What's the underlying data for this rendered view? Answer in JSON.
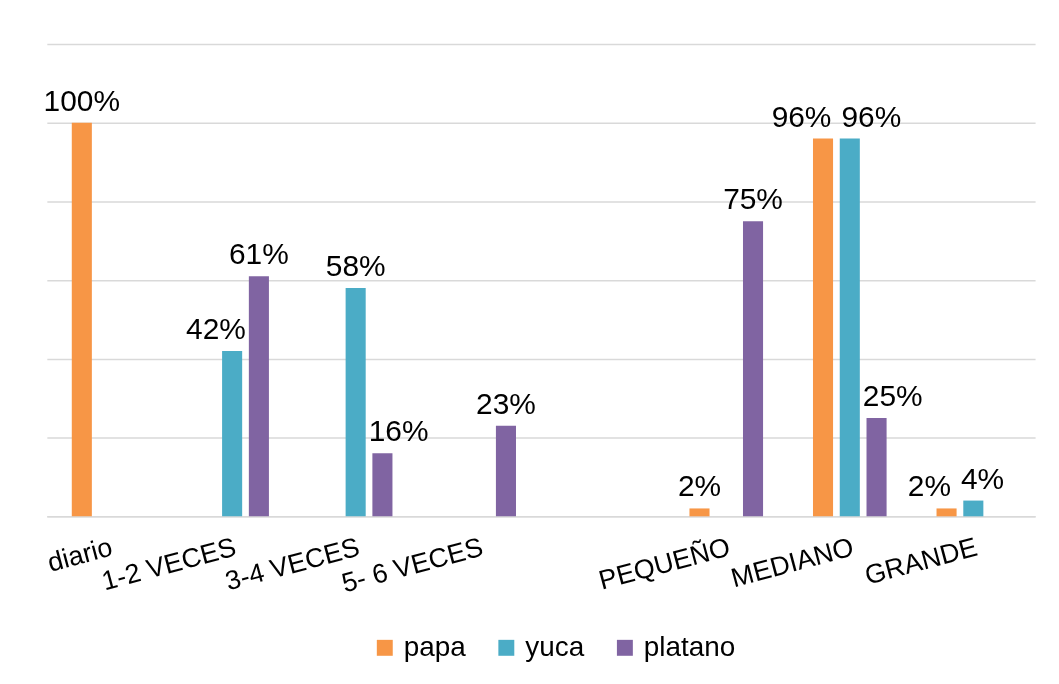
{
  "chart_data": {
    "type": "bar",
    "categories": [
      "diario",
      "1-2 VECES",
      "3-4 VECES",
      "5- 6 VECES",
      null,
      "PEQUEÑO",
      "MEDIANO",
      "GRANDE"
    ],
    "series": [
      {
        "name": "papa",
        "color": "#f79646",
        "values": [
          100,
          null,
          null,
          null,
          null,
          2,
          96,
          2
        ],
        "value_labels": [
          "100%",
          null,
          null,
          null,
          null,
          "2%",
          "96%",
          "2%"
        ]
      },
      {
        "name": "yuca",
        "color": "#4bacc6",
        "values": [
          null,
          42,
          58,
          null,
          null,
          null,
          96,
          4
        ],
        "value_labels": [
          null,
          "42%",
          "58%",
          null,
          null,
          null,
          "96%",
          "4%"
        ]
      },
      {
        "name": "platano",
        "color": "#8064a2",
        "values": [
          null,
          61,
          16,
          23,
          null,
          75,
          25,
          null
        ],
        "value_labels": [
          null,
          "61%",
          "16%",
          "23%",
          null,
          "75%",
          "25%",
          null
        ]
      }
    ],
    "ylim": [
      0,
      120
    ],
    "yticks": [
      {
        "value": 0,
        "label": null
      },
      {
        "value": 20,
        "label": null
      },
      {
        "value": 40,
        "label": null
      },
      {
        "value": 60,
        "label": null
      },
      {
        "value": 80,
        "label": null
      },
      {
        "value": 100,
        "label": null
      },
      {
        "value": 120,
        "label": null
      }
    ],
    "tick_labels": "x",
    "grid": "y",
    "legend": "bottom"
  }
}
